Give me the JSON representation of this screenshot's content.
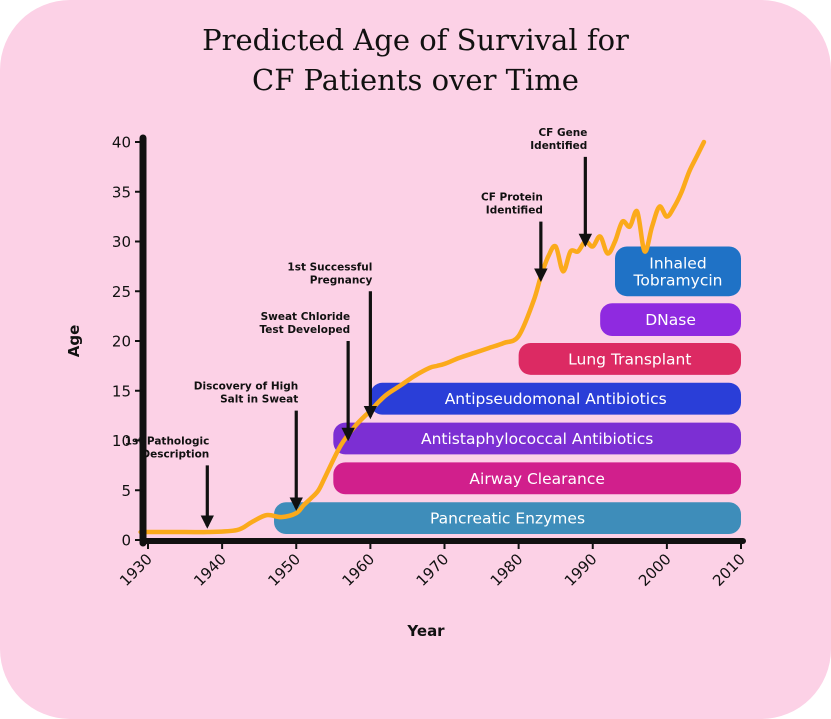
{
  "chart_data": {
    "type": "line",
    "title": "Predicted Age of Survival for\nCF Patients over Time",
    "xlabel": "Year",
    "ylabel": "Age",
    "xlim": [
      1929,
      2010
    ],
    "ylim": [
      0,
      40
    ],
    "x_ticks": [
      1930,
      1940,
      1950,
      1960,
      1970,
      1980,
      1990,
      2000,
      2010
    ],
    "y_ticks": [
      0,
      5,
      10,
      15,
      20,
      25,
      30,
      35,
      40
    ],
    "grid": false,
    "line_color": "#fbaa1b",
    "series": [
      {
        "x": [
          1929,
          1935,
          1938,
          1942,
          1944,
          1946,
          1948,
          1950,
          1951,
          1952,
          1953,
          1954,
          1956,
          1958,
          1960,
          1962,
          1964,
          1966,
          1968,
          1969,
          1970,
          1972,
          1974,
          1976,
          1978,
          1980,
          1982,
          1983,
          1984,
          1985,
          1986,
          1987,
          1988,
          1989,
          1990,
          1991,
          1992,
          1993,
          1994,
          1995,
          1996,
          1997,
          1998,
          1999,
          2000,
          2001,
          2002,
          2003,
          2004,
          2005
        ],
        "y": [
          0.8,
          0.8,
          0.8,
          1.0,
          1.8,
          2.5,
          2.3,
          2.7,
          3.5,
          4.2,
          5.0,
          6.5,
          9.5,
          11.5,
          13.0,
          14.5,
          15.5,
          16.5,
          17.3,
          17.5,
          17.7,
          18.3,
          18.8,
          19.3,
          19.8,
          20.5,
          24.0,
          26.5,
          28.5,
          29.5,
          27.0,
          29.0,
          29.0,
          30.0,
          29.5,
          30.5,
          28.8,
          30.0,
          32.0,
          31.5,
          33.0,
          29.0,
          31.5,
          33.5,
          32.5,
          33.5,
          35.0,
          37.0,
          38.5,
          40.0
        ]
      }
    ],
    "bars": [
      {
        "label": "Inhaled\nTobramycin",
        "start": 1993,
        "end": 2010,
        "y_top": 29.5,
        "y_bottom": 24.5,
        "color": "#1f72c6"
      },
      {
        "label": "DNase",
        "start": 1991,
        "end": 2010,
        "y_top": 23.8,
        "y_bottom": 20.5,
        "color": "#8f2ae0"
      },
      {
        "label": "Lung Transplant",
        "start": 1980,
        "end": 2010,
        "y_top": 19.8,
        "y_bottom": 16.6,
        "color": "#dc2a63"
      },
      {
        "label": "Antipseudomonal Antibiotics",
        "start": 1960,
        "end": 2010,
        "y_top": 15.8,
        "y_bottom": 12.6,
        "color": "#2a3ed8"
      },
      {
        "label": "Antistaphylococcal Antibiotics",
        "start": 1955,
        "end": 2010,
        "y_top": 11.8,
        "y_bottom": 8.6,
        "color": "#7c2fd3"
      },
      {
        "label": "Airway Clearance",
        "start": 1955,
        "end": 2010,
        "y_top": 7.8,
        "y_bottom": 4.6,
        "color": "#d11f8c"
      },
      {
        "label": "Pancreatic Enzymes",
        "start": 1947,
        "end": 2010,
        "y_top": 3.8,
        "y_bottom": 0.6,
        "color": "#3e8dba"
      }
    ],
    "annotations": [
      {
        "text": "1st Pathologic\nDescription",
        "x": 1938,
        "y_tip": 1.2,
        "y_tail": 7.5
      },
      {
        "text": "Discovery of High\nSalt in Sweat",
        "x": 1950,
        "y_tip": 3.0,
        "y_tail": 13.0
      },
      {
        "text": "Sweat Chloride\nTest Developed",
        "x": 1957,
        "y_tip": 10.0,
        "y_tail": 20.0
      },
      {
        "text": "1st Successful\nPregnancy",
        "x": 1960,
        "y_tip": 12.2,
        "y_tail": 25.0
      },
      {
        "text": "CF Protein\nIdentified",
        "x": 1983,
        "y_tip": 26.0,
        "y_tail": 32.0
      },
      {
        "text": "CF Gene\nIdentified",
        "x": 1989,
        "y_tip": 29.5,
        "y_tail": 38.5
      }
    ]
  }
}
